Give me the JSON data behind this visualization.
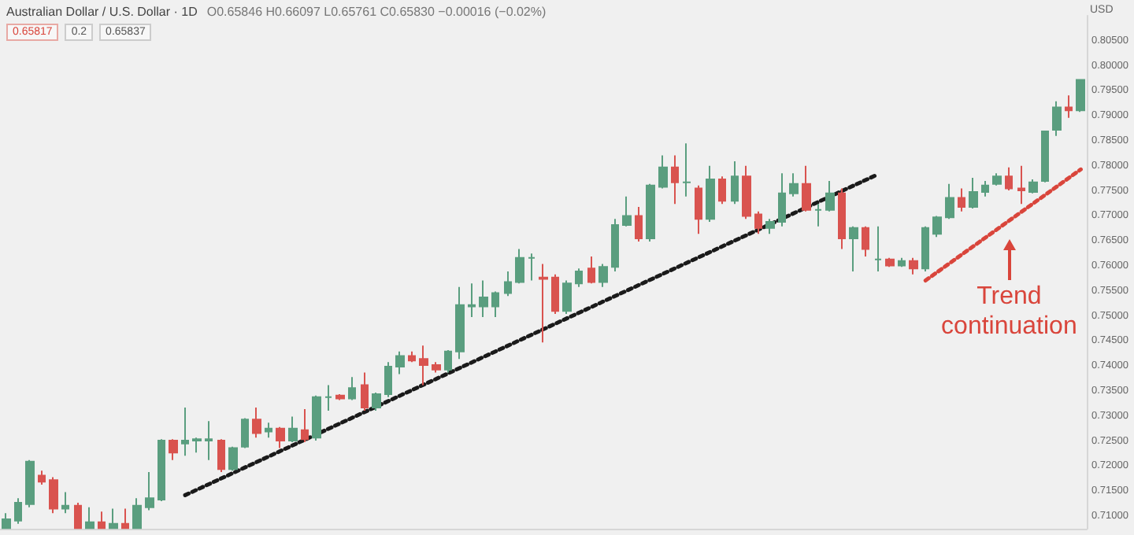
{
  "chart_data": {
    "type": "candlestick",
    "title": "Australian Dollar / U.S. Dollar · 1D",
    "subtitle": "O0.65846 H0.66097 L0.65761 C0.65830 −0.00016 (−0.02%)",
    "ylabel": "USD",
    "annotations": [
      "0.65817",
      "0.2",
      "0.65837",
      "Trend continuation"
    ],
    "categories": [
      null,
      null,
      null,
      null,
      null,
      null,
      null,
      null,
      null,
      null,
      null,
      null,
      null,
      null,
      null,
      null,
      null,
      null,
      null,
      null,
      null,
      null,
      null,
      null,
      null,
      null,
      null,
      null,
      null,
      null,
      null,
      null,
      null,
      null,
      null,
      null,
      null,
      null,
      null,
      null,
      null,
      null,
      null,
      null,
      null,
      null,
      null,
      null,
      null,
      null,
      null,
      null,
      null,
      null,
      null,
      null,
      null,
      null,
      null,
      null,
      null,
      null,
      null,
      null,
      null,
      null,
      null,
      null,
      null,
      null,
      null,
      null,
      null,
      null,
      null,
      null,
      null,
      null,
      null,
      null,
      null,
      null,
      null,
      null,
      null,
      null,
      null,
      null,
      null,
      null,
      null
    ],
    "ohlc": [
      [
        0.7076,
        0.7106,
        0.7076,
        0.7094
      ],
      [
        0.7091,
        0.7136,
        0.7085,
        0.7127
      ],
      [
        0.7124,
        0.7212,
        0.7118,
        0.7209
      ],
      [
        0.7181,
        0.7191,
        0.7163,
        0.7169
      ],
      [
        0.7172,
        0.7178,
        0.7106,
        0.7115
      ],
      [
        0.7115,
        0.7148,
        0.7106,
        0.7121
      ],
      [
        0.7121,
        0.7127,
        0.7076,
        0.7076
      ],
      [
        0.7076,
        0.7118,
        0.7076,
        0.7088
      ],
      [
        0.7088,
        0.7109,
        0.7076,
        0.7076
      ],
      [
        0.7076,
        0.7115,
        0.7076,
        0.7085
      ],
      [
        0.7085,
        0.7115,
        0.7076,
        0.7076
      ],
      [
        0.7076,
        0.7136,
        0.7076,
        0.7121
      ],
      [
        0.7118,
        0.7188,
        0.7112,
        0.7136
      ],
      [
        0.7133,
        0.7254,
        0.713,
        0.7251
      ],
      [
        0.7251,
        0.7254,
        0.7212,
        0.7227
      ],
      [
        0.7245,
        0.7317,
        0.7221,
        0.7251
      ],
      [
        0.7251,
        0.7257,
        0.7227,
        0.7254
      ],
      [
        0.7251,
        0.729,
        0.7212,
        0.7254
      ],
      [
        0.7251,
        0.7254,
        0.7188,
        0.7194
      ],
      [
        0.7194,
        0.7239,
        0.7191,
        0.7236
      ],
      [
        0.7239,
        0.7296,
        0.7236,
        0.7293
      ],
      [
        0.7293,
        0.7317,
        0.7257,
        0.7266
      ],
      [
        0.7269,
        0.7287,
        0.7257,
        0.7275
      ],
      [
        0.7275,
        0.7278,
        0.7236,
        0.7251
      ],
      [
        0.7251,
        0.7299,
        0.7248,
        0.7275
      ],
      [
        0.7272,
        0.7314,
        0.7248,
        0.7254
      ],
      [
        0.7257,
        0.7341,
        0.7251,
        0.7338
      ],
      [
        0.7338,
        0.7362,
        0.7311,
        0.7338
      ],
      [
        0.7341,
        0.7344,
        0.7332,
        0.7335
      ],
      [
        0.7335,
        0.7378,
        0.7332,
        0.7356
      ],
      [
        0.7362,
        0.7387,
        0.7311,
        0.7317
      ],
      [
        0.7317,
        0.7347,
        0.7311,
        0.7344
      ],
      [
        0.7344,
        0.7408,
        0.7338,
        0.7399
      ],
      [
        0.7399,
        0.7429,
        0.7384,
        0.742
      ],
      [
        0.742,
        0.7429,
        0.7408,
        0.7411
      ],
      [
        0.7414,
        0.7441,
        0.7362,
        0.7402
      ],
      [
        0.7402,
        0.7408,
        0.7387,
        0.7393
      ],
      [
        0.7393,
        0.7432,
        0.7387,
        0.7429
      ],
      [
        0.7429,
        0.7558,
        0.7414,
        0.7522
      ],
      [
        0.7519,
        0.7565,
        0.7498,
        0.7522
      ],
      [
        0.7519,
        0.7571,
        0.7498,
        0.7537
      ],
      [
        0.7519,
        0.7549,
        0.7498,
        0.7546
      ],
      [
        0.7546,
        0.7589,
        0.754,
        0.7568
      ],
      [
        0.7568,
        0.7634,
        0.7565,
        0.7616
      ],
      [
        0.7616,
        0.7625,
        0.7571,
        0.7616
      ],
      [
        0.7577,
        0.7604,
        0.7447,
        0.7574
      ],
      [
        0.7577,
        0.7583,
        0.7504,
        0.751
      ],
      [
        0.751,
        0.7571,
        0.7504,
        0.7565
      ],
      [
        0.7565,
        0.7595,
        0.7558,
        0.7589
      ],
      [
        0.7595,
        0.7619,
        0.7565,
        0.7568
      ],
      [
        0.7568,
        0.7604,
        0.7558,
        0.7598
      ],
      [
        0.7598,
        0.7694,
        0.7589,
        0.7682
      ],
      [
        0.7682,
        0.7739,
        0.7679,
        0.77
      ],
      [
        0.77,
        0.7718,
        0.7649,
        0.7655
      ],
      [
        0.7655,
        0.7764,
        0.7649,
        0.7761
      ],
      [
        0.7758,
        0.7821,
        0.7755,
        0.7797
      ],
      [
        0.7797,
        0.7821,
        0.7724,
        0.7767
      ],
      [
        0.7767,
        0.7845,
        0.7739,
        0.7767
      ],
      [
        0.7755,
        0.7761,
        0.7664,
        0.7694
      ],
      [
        0.7694,
        0.78,
        0.7688,
        0.7773
      ],
      [
        0.7773,
        0.7779,
        0.7724,
        0.773
      ],
      [
        0.773,
        0.7809,
        0.7724,
        0.7779
      ],
      [
        0.7779,
        0.78,
        0.7694,
        0.77
      ],
      [
        0.7703,
        0.7709,
        0.7664,
        0.7676
      ],
      [
        0.7676,
        0.7694,
        0.7664,
        0.7688
      ],
      [
        0.7688,
        0.7785,
        0.7679,
        0.7745
      ],
      [
        0.7745,
        0.7785,
        0.7739,
        0.7764
      ],
      [
        0.7764,
        0.78,
        0.7709,
        0.7712
      ],
      [
        0.7712,
        0.7724,
        0.7679,
        0.7712
      ],
      [
        0.7712,
        0.777,
        0.7709,
        0.7745
      ],
      [
        0.7745,
        0.7755,
        0.7634,
        0.7655
      ],
      [
        0.7655,
        0.7679,
        0.7589,
        0.7676
      ],
      [
        0.7676,
        0.7679,
        0.7619,
        0.7634
      ],
      [
        0.7613,
        0.7679,
        0.7589,
        0.7613
      ],
      [
        0.7613,
        0.7616,
        0.7598,
        0.7601
      ],
      [
        0.7601,
        0.7616,
        0.7598,
        0.761
      ],
      [
        0.761,
        0.7616,
        0.7583,
        0.7595
      ],
      [
        0.7595,
        0.7679,
        0.7589,
        0.7676
      ],
      [
        0.7664,
        0.77,
        0.7658,
        0.7697
      ],
      [
        0.7697,
        0.7764,
        0.7694,
        0.7736
      ],
      [
        0.7736,
        0.7755,
        0.7709,
        0.7718
      ],
      [
        0.7718,
        0.7776,
        0.7715,
        0.7748
      ],
      [
        0.7748,
        0.777,
        0.7739,
        0.7761
      ],
      [
        0.7764,
        0.7785,
        0.7761,
        0.7779
      ],
      [
        0.7779,
        0.7797,
        0.7751,
        0.7755
      ],
      [
        0.7755,
        0.78,
        0.7724,
        0.7751
      ],
      [
        0.7748,
        0.7773,
        0.7745,
        0.7767
      ],
      [
        0.777,
        0.7869,
        0.7767,
        0.7869
      ],
      [
        0.7872,
        0.7929,
        0.786,
        0.7917
      ],
      [
        0.7917,
        0.7941,
        0.7896,
        0.7911
      ],
      [
        0.7911,
        0.7972,
        0.7908,
        0.7972
      ]
    ],
    "colors": [
      "#5a9e7f",
      "#5a9e7f",
      "#5a9e7f",
      "#d9534f",
      "#d9534f",
      "#5a9e7f",
      "#d9534f",
      "#5a9e7f",
      "#d9534f",
      "#5a9e7f",
      "#d9534f",
      "#5a9e7f",
      "#5a9e7f",
      "#5a9e7f",
      "#d9534f",
      "#5a9e7f",
      "#5a9e7f",
      "#5a9e7f",
      "#d9534f",
      "#5a9e7f",
      "#5a9e7f",
      "#d9534f",
      "#5a9e7f",
      "#d9534f",
      "#5a9e7f",
      "#d9534f",
      "#5a9e7f",
      "#5a9e7f",
      "#d9534f",
      "#5a9e7f",
      "#d9534f",
      "#5a9e7f",
      "#5a9e7f",
      "#5a9e7f",
      "#d9534f",
      "#d9534f",
      "#d9534f",
      "#5a9e7f",
      "#5a9e7f",
      "#5a9e7f",
      "#5a9e7f",
      "#5a9e7f",
      "#5a9e7f",
      "#5a9e7f",
      "#5a9e7f",
      "#d9534f",
      "#d9534f",
      "#5a9e7f",
      "#5a9e7f",
      "#d9534f",
      "#5a9e7f",
      "#5a9e7f",
      "#5a9e7f",
      "#d9534f",
      "#5a9e7f",
      "#5a9e7f",
      "#d9534f",
      "#5a9e7f",
      "#d9534f",
      "#5a9e7f",
      "#d9534f",
      "#5a9e7f",
      "#d9534f",
      "#d9534f",
      "#5a9e7f",
      "#5a9e7f",
      "#5a9e7f",
      "#d9534f",
      "#5a9e7f",
      "#5a9e7f",
      "#d9534f",
      "#5a9e7f",
      "#d9534f",
      "#5a9e7f",
      "#d9534f",
      "#5a9e7f",
      "#d9534f",
      "#5a9e7f",
      "#5a9e7f",
      "#5a9e7f",
      "#d9534f",
      "#5a9e7f",
      "#5a9e7f",
      "#5a9e7f",
      "#d9534f",
      "#d9534f",
      "#5a9e7f",
      "#5a9e7f",
      "#5a9e7f",
      "#d9534f",
      "#5a9e7f"
    ],
    "series": [
      {
        "type": "line",
        "color": "#1a1a1a",
        "line_style": "dotted",
        "marker": "none",
        "values": [
          null,
          null,
          null,
          null,
          null,
          null,
          null,
          null,
          null,
          null,
          null,
          null,
          null,
          null,
          null,
          0.7142,
          null,
          null,
          null,
          null,
          null,
          null,
          null,
          null,
          null,
          null,
          null,
          null,
          null,
          null,
          null,
          null,
          null,
          null,
          null,
          null,
          null,
          null,
          null,
          null,
          null,
          null,
          null,
          null,
          null,
          null,
          null,
          null,
          null,
          null,
          null,
          null,
          null,
          null,
          null,
          null,
          null,
          null,
          null,
          null,
          null,
          null,
          null,
          null,
          null,
          null,
          null,
          null,
          null,
          null,
          null,
          null,
          null,
          0.7783,
          null,
          null,
          null,
          null,
          null,
          null,
          null,
          null,
          null,
          null,
          null,
          null,
          null,
          null,
          null,
          null,
          null
        ]
      },
      {
        "type": "line",
        "color": "#d9453b",
        "line_style": "dotted",
        "marker": "none",
        "values": [
          null,
          null,
          null,
          null,
          null,
          null,
          null,
          null,
          null,
          null,
          null,
          null,
          null,
          null,
          null,
          null,
          null,
          null,
          null,
          null,
          null,
          null,
          null,
          null,
          null,
          null,
          null,
          null,
          null,
          null,
          null,
          null,
          null,
          null,
          null,
          null,
          null,
          null,
          null,
          null,
          null,
          null,
          null,
          null,
          null,
          null,
          null,
          null,
          null,
          null,
          null,
          null,
          null,
          null,
          null,
          null,
          null,
          null,
          null,
          null,
          null,
          null,
          null,
          null,
          null,
          null,
          null,
          null,
          null,
          null,
          null,
          null,
          null,
          null,
          null,
          null,
          null,
          0.7571,
          null,
          null,
          null,
          null,
          null,
          null,
          null,
          null,
          null,
          null,
          null,
          null,
          0.7793
        ]
      }
    ],
    "ylim": [
      0.7075,
      0.81
    ],
    "yticks": [
      {
        "value": 0.71,
        "label": "0.71000"
      },
      {
        "value": 0.715,
        "label": "0.71500"
      },
      {
        "value": 0.72,
        "label": "0.72000"
      },
      {
        "value": 0.725,
        "label": "0.72500"
      },
      {
        "value": 0.73,
        "label": "0.73000"
      },
      {
        "value": 0.735,
        "label": "0.73500"
      },
      {
        "value": 0.74,
        "label": "0.74000"
      },
      {
        "value": 0.745,
        "label": "0.74500"
      },
      {
        "value": 0.75,
        "label": "0.75000"
      },
      {
        "value": 0.755,
        "label": "0.75500"
      },
      {
        "value": 0.76,
        "label": "0.76000"
      },
      {
        "value": 0.765,
        "label": "0.76500"
      },
      {
        "value": 0.77,
        "label": "0.77000"
      },
      {
        "value": 0.775,
        "label": "0.77500"
      },
      {
        "value": 0.78,
        "label": "0.78000"
      },
      {
        "value": 0.785,
        "label": "0.78500"
      },
      {
        "value": 0.79,
        "label": "0.79000"
      },
      {
        "value": 0.795,
        "label": "0.79500"
      },
      {
        "value": 0.8,
        "label": "0.80000"
      },
      {
        "value": 0.805,
        "label": "0.80500"
      }
    ],
    "tick_labels": "y"
  }
}
